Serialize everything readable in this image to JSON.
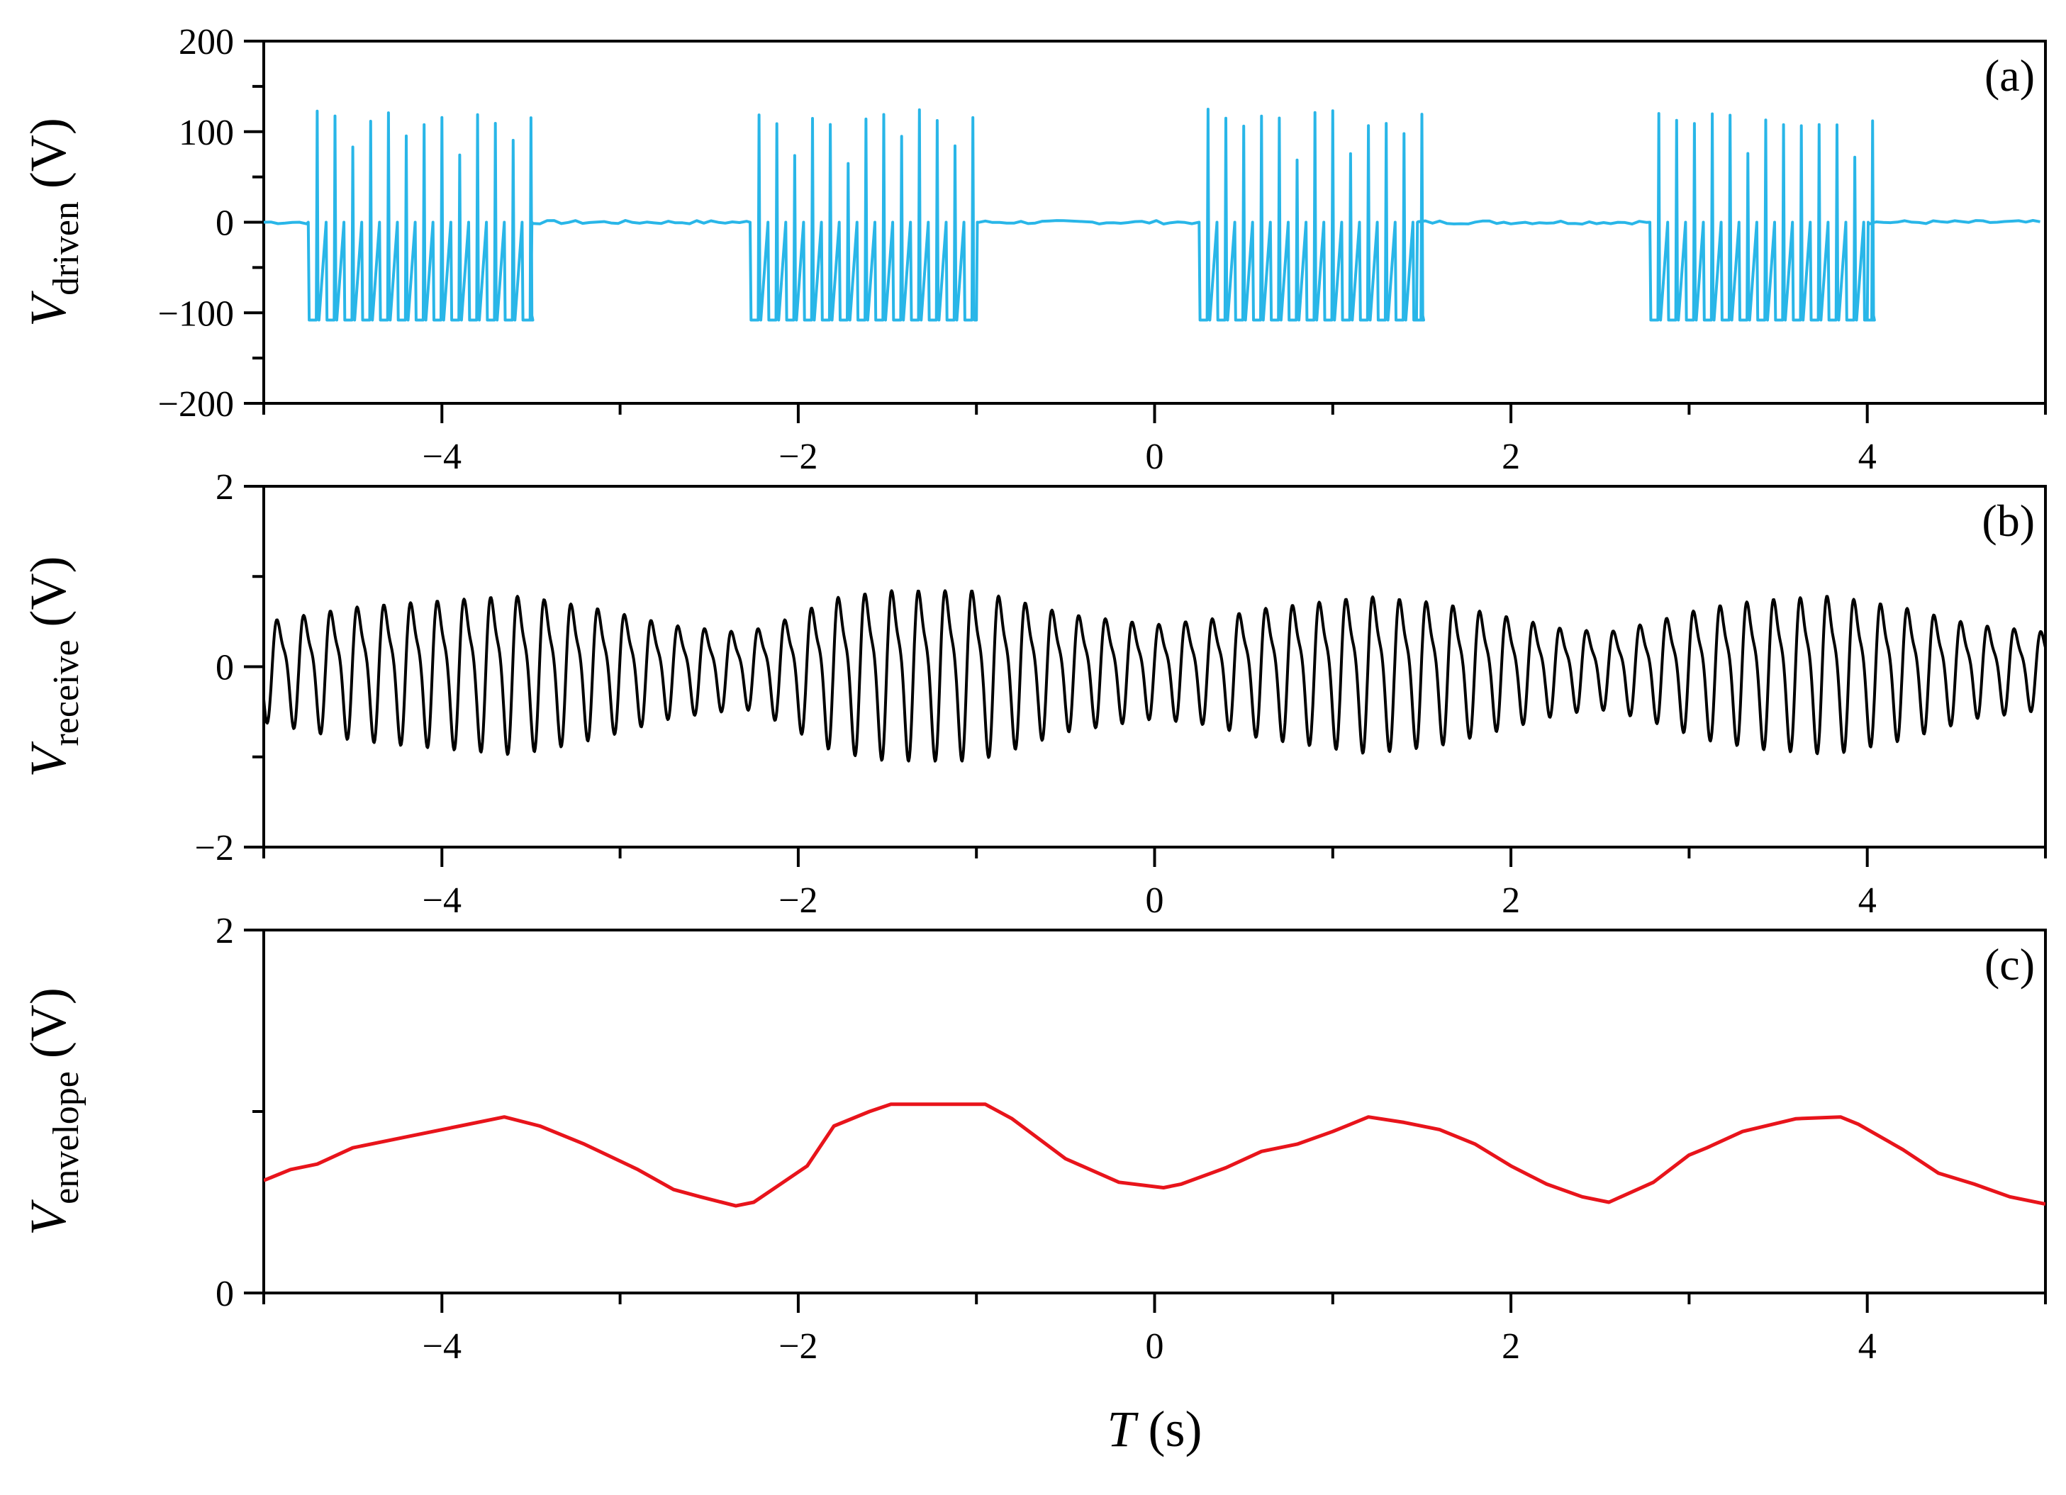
{
  "chart_data": [
    {
      "id": "a",
      "type": "line",
      "panel_label": "(a)",
      "ylabel_main": "V",
      "ylabel_sub": "driven",
      "ylabel_unit": " (V)",
      "xlim": [
        -5,
        5
      ],
      "ylim": [
        -200,
        200
      ],
      "xticks": [
        -4,
        -2,
        0,
        2,
        4
      ],
      "xtick_labels": [
        "−4",
        "−2",
        "0",
        "2",
        "4"
      ],
      "yticks": [
        -200,
        -100,
        0,
        100,
        200
      ],
      "ytick_labels": [
        "−200",
        "−100",
        "0",
        "100",
        "200"
      ],
      "color": "#29B6E8",
      "series": [
        {
          "bursts": [
            [
              -4.75,
              -3.5
            ],
            [
              -2.27,
              -1.0
            ],
            [
              0.25,
              1.47
            ],
            [
              2.78,
              4.0
            ]
          ],
          "pulse_period": 0.1,
          "high": 125,
          "low": -108,
          "baseline": 0
        }
      ]
    },
    {
      "id": "b",
      "type": "line",
      "panel_label": "(b)",
      "ylabel_main": "V",
      "ylabel_sub": "receive",
      "ylabel_unit": " (V)",
      "xlim": [
        -5,
        5
      ],
      "ylim": [
        -2,
        2
      ],
      "xticks": [
        -4,
        -2,
        0,
        2,
        4
      ],
      "xtick_labels": [
        "−4",
        "−2",
        "0",
        "2",
        "4"
      ],
      "yticks": [
        -2,
        0,
        2
      ],
      "ytick_labels": [
        "−2",
        "0",
        "2"
      ],
      "color": "#000000",
      "series": [
        {
          "oscillation_period": 0.15,
          "envelope_x": [
            -5.0,
            -4.8,
            -4.5,
            -4.2,
            -3.6,
            -3.4,
            -3.1,
            -2.7,
            -2.3,
            -2.1,
            -1.8,
            -1.5,
            -1.0,
            -0.8,
            -0.5,
            0.0,
            0.3,
            0.6,
            1.2,
            1.6,
            2.0,
            2.3,
            2.55,
            2.8,
            3.1,
            3.4,
            3.8,
            4.2,
            4.6,
            5.0
          ],
          "envelope_y": [
            0.62,
            0.7,
            0.82,
            0.88,
            0.98,
            0.92,
            0.79,
            0.57,
            0.47,
            0.62,
            0.95,
            1.05,
            1.05,
            0.93,
            0.73,
            0.58,
            0.65,
            0.8,
            0.97,
            0.88,
            0.68,
            0.52,
            0.48,
            0.62,
            0.82,
            0.92,
            0.98,
            0.82,
            0.58,
            0.48
          ]
        }
      ]
    },
    {
      "id": "c",
      "type": "line",
      "panel_label": "(c)",
      "ylabel_main": "V",
      "ylabel_sub": "envelope",
      "ylabel_unit": " (V)",
      "xlabel_main": "T",
      "xlabel_unit": " (s)",
      "xlim": [
        -5,
        5
      ],
      "ylim": [
        0,
        2
      ],
      "xticks": [
        -4,
        -2,
        0,
        2,
        4
      ],
      "xtick_labels": [
        "−4",
        "−2",
        "0",
        "2",
        "4"
      ],
      "yticks": [
        0,
        2
      ],
      "ytick_labels": [
        "0",
        "2"
      ],
      "color": "#E8141B",
      "series": [
        {
          "x": [
            -5.0,
            -4.85,
            -4.7,
            -4.5,
            -4.2,
            -3.9,
            -3.65,
            -3.45,
            -3.2,
            -2.9,
            -2.7,
            -2.55,
            -2.35,
            -2.25,
            -2.1,
            -1.95,
            -1.8,
            -1.6,
            -1.48,
            -1.2,
            -0.95,
            -0.8,
            -0.5,
            -0.2,
            0.05,
            0.15,
            0.4,
            0.6,
            0.8,
            1.0,
            1.2,
            1.4,
            1.6,
            1.8,
            2.0,
            2.2,
            2.4,
            2.55,
            2.8,
            3.0,
            3.1,
            3.3,
            3.6,
            3.85,
            3.95,
            4.2,
            4.4,
            4.6,
            4.8,
            5.0
          ],
          "y": [
            0.62,
            0.68,
            0.71,
            0.8,
            0.86,
            0.92,
            0.97,
            0.92,
            0.82,
            0.68,
            0.57,
            0.53,
            0.48,
            0.5,
            0.6,
            0.7,
            0.92,
            1.0,
            1.04,
            1.04,
            1.04,
            0.96,
            0.74,
            0.61,
            0.58,
            0.6,
            0.69,
            0.78,
            0.82,
            0.89,
            0.97,
            0.94,
            0.9,
            0.82,
            0.7,
            0.6,
            0.53,
            0.5,
            0.61,
            0.76,
            0.8,
            0.89,
            0.96,
            0.97,
            0.93,
            0.79,
            0.66,
            0.6,
            0.53,
            0.49
          ]
        }
      ]
    }
  ]
}
